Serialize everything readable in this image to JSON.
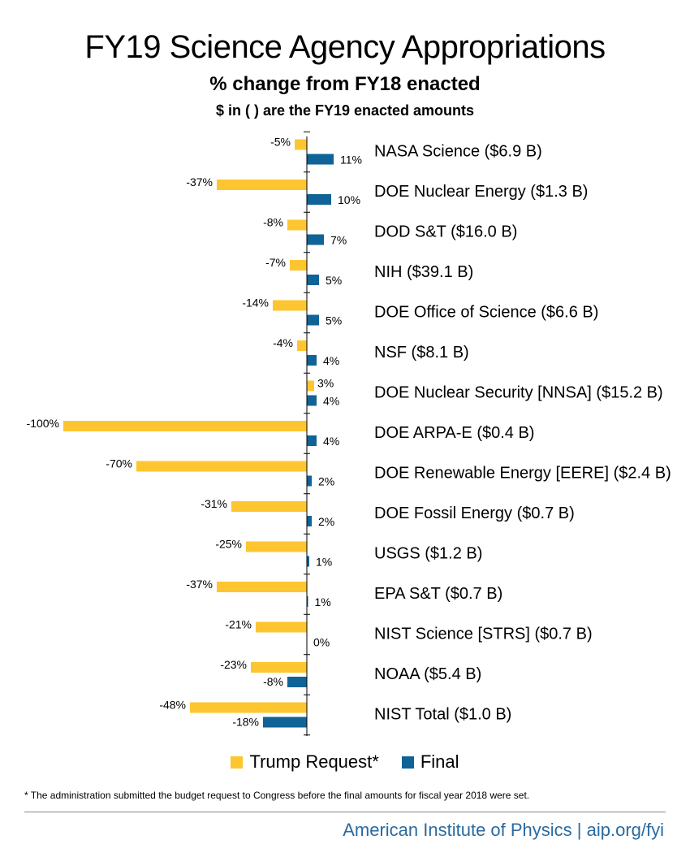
{
  "header": {
    "title": "FY19 Science Agency Appropriations",
    "subtitle": "% change from FY18 enacted",
    "note": "$ in ( ) are the FY19 enacted amounts"
  },
  "colors": {
    "request": "#fdc530",
    "final": "#0f6396"
  },
  "legend": {
    "request_label": "Trump Request*",
    "final_label": "Final"
  },
  "footnote": "* The administration submitted the budget request to Congress before the final amounts for fiscal year 2018 were set.",
  "credit": "American Institute of Physics | aip.org/fyi",
  "chart_data": {
    "type": "bar",
    "orientation": "horizontal",
    "title": "FY19 Science Agency Appropriations",
    "subtitle": "% change from FY18 enacted",
    "categories": [
      "NASA Science ($6.9 B)",
      "DOE Nuclear Energy ($1.3 B)",
      "DOD S&T ($16.0 B)",
      "NIH ($39.1 B)",
      "DOE Office of Science ($6.6 B)",
      "NSF ($8.1 B)",
      "DOE Nuclear Security [NNSA] ($15.2 B)",
      "DOE ARPA-E ($0.4 B)",
      "DOE Renewable Energy [EERE] ($2.4 B)",
      "DOE Fossil Energy ($0.7 B)",
      "USGS ($1.2 B)",
      "EPA S&T ($0.7 B)",
      "NIST Science [STRS] ($0.7 B)",
      "NOAA ($5.4 B)",
      "NIST Total ($1.0 B)"
    ],
    "series": [
      {
        "name": "Trump Request*",
        "values": [
          -5,
          -37,
          -8,
          -7,
          -14,
          -4,
          3,
          -100,
          -70,
          -31,
          -25,
          -37,
          -21,
          -23,
          -48
        ],
        "labels": [
          "-5%",
          "-37%",
          "-8%",
          "-7%",
          "-14%",
          "-4%",
          "3%",
          "-100%",
          "-70%",
          "-31%",
          "-25%",
          "-37%",
          "-21%",
          "-23%",
          "-48%"
        ]
      },
      {
        "name": "Final",
        "values": [
          11,
          10,
          7,
          5,
          5,
          4,
          4,
          4,
          2,
          2,
          1,
          0.5,
          0,
          -8,
          -18
        ],
        "labels": [
          "11%",
          "10%",
          "7%",
          "5%",
          "5%",
          "4%",
          "4%",
          "4%",
          "2%",
          "2%",
          "1%",
          "1%",
          "0%",
          "-8%",
          "-18%"
        ]
      }
    ],
    "xlim": [
      -100,
      11
    ],
    "grid": false,
    "legend_position": "bottom"
  }
}
